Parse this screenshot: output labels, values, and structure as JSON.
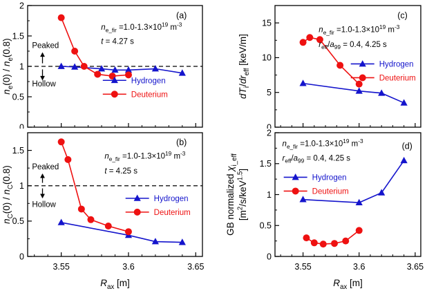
{
  "figure": {
    "bg": "#ffffff",
    "axis_color": "#000000",
    "xlabel": "*{R}_{ax} [m]",
    "colors": {
      "hydrogen": "#1414cc",
      "deuterium": "#ee1111",
      "dashed_line": "#000000"
    }
  },
  "chart_data": [
    {
      "id": "a",
      "type": "scatter",
      "panel_label": "(a)",
      "col": 0,
      "row": 0,
      "ylabel": [
        "*{n}_{e}(0) / *{n}_{e}(0.8)"
      ],
      "xlim": [
        3.525,
        3.655
      ],
      "ylim": [
        0,
        2
      ],
      "xticks": {
        "values": [
          3.55,
          3.6,
          3.65
        ],
        "labels": [
          "3.55",
          "3.6",
          "3.65"
        ]
      },
      "yticks": {
        "values": [
          0,
          0.5,
          1,
          1.5,
          2
        ],
        "labels": [
          "0",
          "0.5",
          "1",
          "1.5",
          "2"
        ]
      },
      "x_minor_step": 0.01,
      "y_minor_step": 0.25,
      "dashed_y": 1,
      "series": [
        {
          "name": "Hydrogen",
          "color": "#1414cc",
          "marker": "triangle",
          "x": [
            3.55,
            3.56,
            3.58,
            3.59,
            3.6,
            3.62,
            3.64
          ],
          "y": [
            1.0,
            0.99,
            0.96,
            0.94,
            0.94,
            0.96,
            0.89
          ]
        },
        {
          "name": "Deuterium",
          "color": "#ee1111",
          "marker": "circle",
          "x": [
            3.55,
            3.56,
            3.567,
            3.577,
            3.588,
            3.6
          ],
          "y": [
            1.8,
            1.25,
            1.0,
            0.87,
            0.84,
            0.86
          ]
        }
      ],
      "annotations": [
        {
          "t": "text",
          "str": "*{n}_{e_fir} =1.0-1.3×10^{19} m^{-3}",
          "x": 0.42,
          "y": 0.8,
          "size": 11.5
        },
        {
          "t": "text",
          "str": "*{t} = 4.27 s",
          "x": 0.42,
          "y": 0.685,
          "size": 11.5
        },
        {
          "t": "text",
          "str": "Peaked",
          "x": 0.025,
          "y": 0.65,
          "size": 11.5
        },
        {
          "t": "arrow",
          "x": 0.085,
          "y1": 0.525,
          "y2": 0.61
        },
        {
          "t": "arrow",
          "x": 0.085,
          "y1": 0.475,
          "y2": 0.39
        },
        {
          "t": "text",
          "str": "Hollow",
          "x": 0.025,
          "y": 0.335,
          "size": 11.5
        }
      ],
      "legend": {
        "x": 0.43,
        "y": 0.385
      }
    },
    {
      "id": "b",
      "type": "scatter",
      "panel_label": "(b)",
      "col": 0,
      "row": 1,
      "ylabel": [
        "*{n}_{C}(0) / *{n}_{C}(0.8)"
      ],
      "xlim": [
        3.525,
        3.655
      ],
      "ylim": [
        0,
        1.75
      ],
      "xticks": {
        "values": [
          3.55,
          3.6,
          3.65
        ],
        "labels": [
          "3.55",
          "3.6",
          "3.65"
        ]
      },
      "yticks": {
        "values": [
          0,
          0.5,
          1,
          1.5
        ],
        "labels": [
          "0",
          "0.5",
          "1",
          "1.5"
        ]
      },
      "x_minor_step": 0.01,
      "y_minor_step": 0.25,
      "dashed_y": 1,
      "series": [
        {
          "name": "Hydrogen",
          "color": "#1414cc",
          "marker": "triangle",
          "x": [
            3.55,
            3.6,
            3.62,
            3.64
          ],
          "y": [
            0.48,
            0.3,
            0.21,
            0.2
          ]
        },
        {
          "name": "Deuterium",
          "color": "#ee1111",
          "marker": "circle",
          "x": [
            3.55,
            3.555,
            3.565,
            3.572,
            3.585,
            3.6
          ],
          "y": [
            1.62,
            1.37,
            0.67,
            0.52,
            0.43,
            0.35
          ]
        }
      ],
      "annotations": [
        {
          "t": "text",
          "str": "*{n}_{e_fir} =1.0-1.3×10^{19} m^{-3}",
          "x": 0.44,
          "y": 0.79,
          "size": 11.5
        },
        {
          "t": "text",
          "str": "*{t} = 4.25 s",
          "x": 0.44,
          "y": 0.67,
          "size": 11.5
        },
        {
          "t": "text",
          "str": "Peaked",
          "x": 0.025,
          "y": 0.705,
          "size": 11.5
        },
        {
          "t": "arrow",
          "x": 0.085,
          "y1": 0.595,
          "y2": 0.665
        },
        {
          "t": "arrow",
          "x": 0.085,
          "y1": 0.55,
          "y2": 0.475
        },
        {
          "t": "text",
          "str": "Hollow",
          "x": 0.025,
          "y": 0.4,
          "size": 11.5
        }
      ],
      "legend": {
        "x": 0.56,
        "y": 0.47
      }
    },
    {
      "id": "c",
      "type": "scatter",
      "panel_label": "(c)",
      "col": 1,
      "row": 0,
      "ylabel": [
        "*{dT}_{i}/*{dr}_{eff} [keV/m]"
      ],
      "xlim": [
        3.525,
        3.655
      ],
      "ylim": [
        0,
        17.5
      ],
      "xticks": {
        "values": [
          3.55,
          3.6,
          3.65
        ],
        "labels": [
          "3.55",
          "3.6",
          "3.65"
        ]
      },
      "yticks": {
        "values": [
          0,
          5,
          10,
          15
        ],
        "labels": [
          "0",
          "5",
          "10",
          "15"
        ]
      },
      "x_minor_step": 0.01,
      "y_minor_step": 2.5,
      "dashed_y": null,
      "series": [
        {
          "name": "Hydrogen",
          "color": "#1414cc",
          "marker": "triangle",
          "x": [
            3.55,
            3.6,
            3.62,
            3.64
          ],
          "y": [
            6.3,
            5.2,
            4.9,
            3.5
          ]
        },
        {
          "name": "Deuterium",
          "color": "#ee1111",
          "marker": "circle",
          "x": [
            3.55,
            3.556,
            3.565,
            3.583,
            3.6
          ],
          "y": [
            12.2,
            12.9,
            12.6,
            8.9,
            6.2
          ]
        }
      ],
      "annotations": [
        {
          "t": "text",
          "str": "*{n}_{e_fir} =1.0-1.3×10^{19} m^{-3}",
          "x": 0.3,
          "y": 0.78,
          "size": 11.5
        },
        {
          "t": "text",
          "str": "*{r}_{eff}/*{a}_{99} = 0.4, 4.25 s",
          "x": 0.3,
          "y": 0.66,
          "size": 11.5
        }
      ],
      "legend": {
        "x": 0.52,
        "y": 0.52
      }
    },
    {
      "id": "d",
      "type": "scatter",
      "panel_label": "(d)",
      "col": 1,
      "row": 1,
      "ylabel": [
        "GB normalized *{χ}_{i_eff}",
        "[m^{2}/s/keV^{1.5}]"
      ],
      "xlim": [
        3.525,
        3.655
      ],
      "ylim": [
        0,
        2
      ],
      "xticks": {
        "values": [
          3.55,
          3.6,
          3.65
        ],
        "labels": [
          "3.55",
          "3.6",
          "3.65"
        ]
      },
      "yticks": {
        "values": [
          0,
          0.5,
          1,
          1.5,
          2
        ],
        "labels": [
          "0",
          "0.5",
          "1",
          "1.5",
          "2"
        ]
      },
      "x_minor_step": 0.01,
      "y_minor_step": 0.25,
      "dashed_y": null,
      "series": [
        {
          "name": "Hydrogen",
          "color": "#1414cc",
          "marker": "triangle",
          "x": [
            3.55,
            3.6,
            3.62,
            3.64
          ],
          "y": [
            0.92,
            0.87,
            1.03,
            1.55
          ]
        },
        {
          "name": "Deuterium",
          "color": "#ee1111",
          "marker": "circle",
          "x": [
            3.553,
            3.56,
            3.568,
            3.578,
            3.588,
            3.6
          ],
          "y": [
            0.3,
            0.22,
            0.2,
            0.21,
            0.25,
            0.42
          ]
        }
      ],
      "annotations": [
        {
          "t": "text",
          "str": "*{n}_{e_fir} =1.0-1.3×10^{19} m^{-3}",
          "x": 0.05,
          "y": 0.89,
          "size": 11.5
        },
        {
          "t": "text",
          "str": "*{r}_{eff}/*{a}_{99} = 0.4, 4.25 s",
          "x": 0.05,
          "y": 0.775,
          "size": 11.5
        }
      ],
      "legend": {
        "x": 0.06,
        "y": 0.64
      }
    }
  ]
}
